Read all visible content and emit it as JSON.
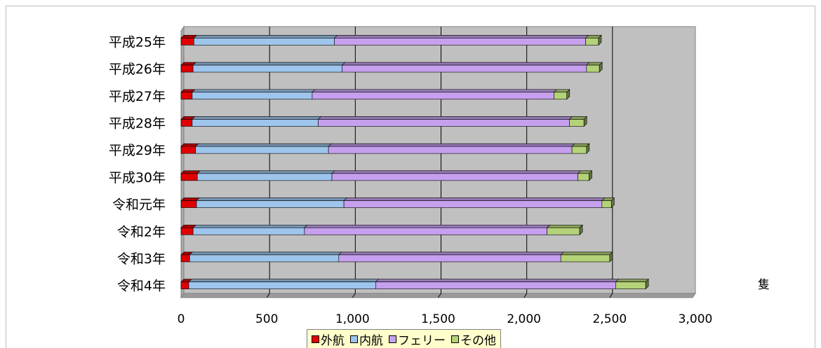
{
  "chart_data": {
    "type": "bar",
    "orientation": "horizontal",
    "stacked": true,
    "categories": [
      "平成25年",
      "平成26年",
      "平成27年",
      "平成28年",
      "平成29年",
      "平成30年",
      "令和元年",
      "令和2年",
      "令和3年",
      "令和4年"
    ],
    "series": [
      {
        "name": "外航",
        "color": "#e00000",
        "values": [
          75,
          70,
          65,
          65,
          85,
          95,
          90,
          70,
          50,
          45
        ]
      },
      {
        "name": "内航",
        "color": "#9ec5ec",
        "values": [
          820,
          870,
          700,
          735,
          775,
          785,
          860,
          650,
          870,
          1090
        ]
      },
      {
        "name": "フェリー",
        "color": "#c6a0ee",
        "values": [
          1465,
          1425,
          1410,
          1465,
          1420,
          1435,
          1505,
          1415,
          1295,
          1400
        ]
      },
      {
        "name": "その他",
        "color": "#b4d278",
        "values": [
          75,
          75,
          75,
          85,
          85,
          65,
          55,
          190,
          285,
          175
        ]
      }
    ],
    "xlim": [
      0,
      3000
    ],
    "xticks": [
      "0",
      "500",
      "1,000",
      "1,500",
      "2,000",
      "2,500",
      "3,000"
    ],
    "unit": "隻",
    "grid": true,
    "legend": "bottom"
  }
}
